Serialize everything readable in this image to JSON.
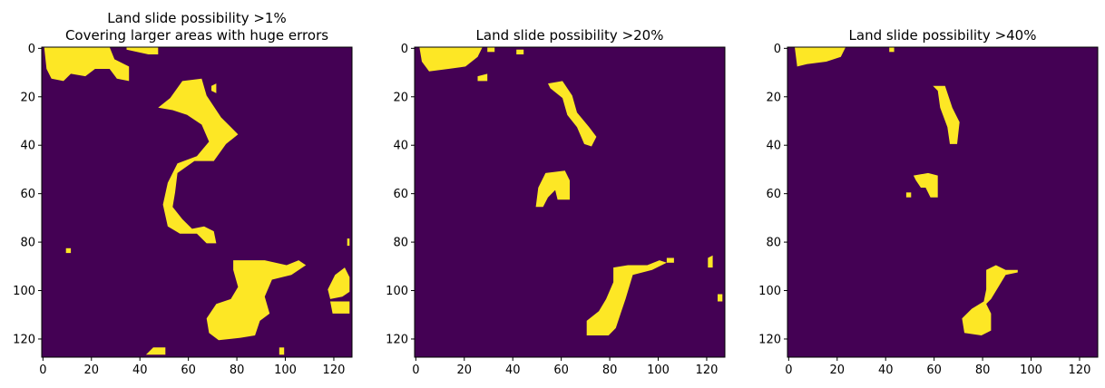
{
  "chart_data": [
    {
      "type": "heatmap",
      "title_lines": [
        "Land slide possibility >1%",
        "Covering larger areas with huge errors"
      ],
      "xlabel": "",
      "ylabel": "",
      "xlim": [
        0,
        127
      ],
      "ylim": [
        127,
        0
      ],
      "xticks": [
        0,
        20,
        40,
        60,
        80,
        100,
        120
      ],
      "yticks": [
        0,
        20,
        40,
        60,
        80,
        100,
        120
      ],
      "colors": {
        "background": "#440154",
        "foreground": "#fde725"
      },
      "regions": [
        {
          "name": "top-left blob",
          "points": [
            [
              1,
              0
            ],
            [
              28,
              0
            ],
            [
              30,
              5
            ],
            [
              36,
              8
            ],
            [
              36,
              14
            ],
            [
              31,
              13
            ],
            [
              28,
              9
            ],
            [
              22,
              9
            ],
            [
              18,
              12
            ],
            [
              12,
              11
            ],
            [
              9,
              14
            ],
            [
              4,
              13
            ],
            [
              2,
              9
            ]
          ]
        },
        {
          "name": "top strip",
          "points": [
            [
              35,
              0
            ],
            [
              48,
              0
            ],
            [
              48,
              3
            ],
            [
              44,
              3
            ],
            [
              35,
              1
            ]
          ]
        },
        {
          "name": "small dot top",
          "points": [
            [
              70,
              16
            ],
            [
              72,
              15
            ],
            [
              72,
              19
            ],
            [
              70,
              18
            ]
          ]
        },
        {
          "name": "upper S",
          "points": [
            [
              48,
              25
            ],
            [
              53,
              21
            ],
            [
              58,
              14
            ],
            [
              66,
              13
            ],
            [
              68,
              20
            ],
            [
              74,
              29
            ],
            [
              81,
              36
            ],
            [
              76,
              40
            ],
            [
              71,
              47
            ],
            [
              63,
              47
            ],
            [
              56,
              52
            ],
            [
              55,
              60
            ],
            [
              54,
              66
            ],
            [
              58,
              71
            ],
            [
              62,
              75
            ],
            [
              67,
              74
            ],
            [
              71,
              76
            ],
            [
              72,
              81
            ],
            [
              68,
              81
            ],
            [
              64,
              77
            ],
            [
              57,
              77
            ],
            [
              52,
              74
            ],
            [
              50,
              65
            ],
            [
              52,
              56
            ],
            [
              56,
              48
            ],
            [
              64,
              45
            ],
            [
              69,
              39
            ],
            [
              66,
              32
            ],
            [
              60,
              28
            ],
            [
              54,
              26
            ]
          ]
        },
        {
          "name": "left dot",
          "points": [
            [
              10,
              83
            ],
            [
              12,
              83
            ],
            [
              12,
              85
            ],
            [
              10,
              85
            ]
          ]
        },
        {
          "name": "right dot",
          "points": [
            [
              126,
              79
            ],
            [
              127,
              79
            ],
            [
              127,
              82
            ],
            [
              126,
              82
            ]
          ]
        },
        {
          "name": "lower blob",
          "points": [
            [
              79,
              88
            ],
            [
              92,
              88
            ],
            [
              101,
              90
            ],
            [
              106,
              88
            ],
            [
              109,
              90
            ],
            [
              103,
              94
            ],
            [
              95,
              96
            ],
            [
              92,
              103
            ],
            [
              94,
              110
            ],
            [
              90,
              113
            ],
            [
              88,
              119
            ],
            [
              82,
              120
            ],
            [
              73,
              121
            ],
            [
              69,
              118
            ],
            [
              68,
              112
            ],
            [
              72,
              106
            ],
            [
              78,
              104
            ],
            [
              81,
              99
            ],
            [
              79,
              92
            ]
          ]
        },
        {
          "name": "right edge blobs",
          "points": [
            [
              121,
              94
            ],
            [
              125,
              91
            ],
            [
              127,
              95
            ],
            [
              127,
              101
            ],
            [
              124,
              103
            ],
            [
              119,
              104
            ],
            [
              118,
              100
            ]
          ]
        },
        {
          "name": "right edge lower",
          "points": [
            [
              119,
              105
            ],
            [
              127,
              105
            ],
            [
              127,
              110
            ],
            [
              120,
              110
            ]
          ]
        },
        {
          "name": "bottom blob",
          "points": [
            [
              43,
              127
            ],
            [
              46,
              124
            ],
            [
              51,
              124
            ],
            [
              51,
              127
            ]
          ]
        },
        {
          "name": "bottom dot",
          "points": [
            [
              98,
              124
            ],
            [
              100,
              124
            ],
            [
              100,
              127
            ],
            [
              98,
              127
            ]
          ]
        }
      ]
    },
    {
      "type": "heatmap",
      "title_lines": [
        "Land slide possibility >20%"
      ],
      "xlabel": "",
      "ylabel": "",
      "xlim": [
        0,
        127
      ],
      "ylim": [
        127,
        0
      ],
      "xticks": [
        0,
        20,
        40,
        60,
        80,
        100,
        120
      ],
      "yticks": [
        0,
        20,
        40,
        60,
        80,
        100,
        120
      ],
      "colors": {
        "background": "#440154",
        "foreground": "#fde725"
      },
      "regions": [
        {
          "name": "top-left blob",
          "points": [
            [
              2,
              0
            ],
            [
              28,
              0
            ],
            [
              26,
              4
            ],
            [
              21,
              8
            ],
            [
              14,
              9
            ],
            [
              6,
              10
            ],
            [
              3,
              6
            ]
          ]
        },
        {
          "name": "top dot",
          "points": [
            [
              30,
              0
            ],
            [
              33,
              0
            ],
            [
              33,
              2
            ],
            [
              30,
              2
            ]
          ]
        },
        {
          "name": "top dot 2",
          "points": [
            [
              42,
              1
            ],
            [
              45,
              1
            ],
            [
              45,
              3
            ],
            [
              42,
              3
            ]
          ]
        },
        {
          "name": "small dot",
          "points": [
            [
              26,
              12
            ],
            [
              30,
              11
            ],
            [
              30,
              14
            ],
            [
              26,
              14
            ]
          ]
        },
        {
          "name": "upper streak",
          "points": [
            [
              55,
              15
            ],
            [
              61,
              14
            ],
            [
              65,
              20
            ],
            [
              67,
              27
            ],
            [
              72,
              33
            ],
            [
              75,
              37
            ],
            [
              73,
              41
            ],
            [
              70,
              40
            ],
            [
              67,
              33
            ],
            [
              63,
              28
            ],
            [
              61,
              21
            ],
            [
              56,
              17
            ]
          ]
        },
        {
          "name": "middle blob",
          "points": [
            [
              51,
              58
            ],
            [
              54,
              52
            ],
            [
              62,
              51
            ],
            [
              64,
              55
            ],
            [
              64,
              63
            ],
            [
              59,
              63
            ],
            [
              58,
              59
            ],
            [
              55,
              62
            ],
            [
              53,
              66
            ],
            [
              50,
              66
            ]
          ]
        },
        {
          "name": "lower blob",
          "points": [
            [
              82,
              91
            ],
            [
              88,
              90
            ],
            [
              96,
              90
            ],
            [
              101,
              88
            ],
            [
              104,
              89
            ],
            [
              98,
              92
            ],
            [
              90,
              94
            ],
            [
              87,
              104
            ],
            [
              85,
              110
            ],
            [
              83,
              116
            ],
            [
              80,
              119
            ],
            [
              71,
              119
            ],
            [
              71,
              113
            ],
            [
              76,
              109
            ],
            [
              79,
              104
            ],
            [
              82,
              97
            ]
          ]
        },
        {
          "name": "right dot",
          "points": [
            [
              104,
              87
            ],
            [
              107,
              87
            ],
            [
              107,
              89
            ],
            [
              104,
              89
            ]
          ]
        },
        {
          "name": "right edge",
          "points": [
            [
              121,
              87
            ],
            [
              123,
              86
            ],
            [
              123,
              91
            ],
            [
              121,
              91
            ]
          ]
        },
        {
          "name": "right edge low",
          "points": [
            [
              125,
              102
            ],
            [
              127,
              102
            ],
            [
              127,
              105
            ],
            [
              125,
              105
            ]
          ]
        }
      ]
    },
    {
      "type": "heatmap",
      "title_lines": [
        "Land slide possibility >40%"
      ],
      "xlabel": "",
      "ylabel": "",
      "xlim": [
        0,
        127
      ],
      "ylim": [
        127,
        0
      ],
      "xticks": [
        0,
        20,
        40,
        60,
        80,
        100,
        120
      ],
      "yticks": [
        0,
        20,
        40,
        60,
        80,
        100,
        120
      ],
      "colors": {
        "background": "#440154",
        "foreground": "#fde725"
      },
      "regions": [
        {
          "name": "top-left blob",
          "points": [
            [
              3,
              0
            ],
            [
              24,
              0
            ],
            [
              22,
              4
            ],
            [
              16,
              6
            ],
            [
              8,
              7
            ],
            [
              4,
              8
            ]
          ]
        },
        {
          "name": "top dot",
          "points": [
            [
              42,
              0
            ],
            [
              44,
              0
            ],
            [
              44,
              2
            ],
            [
              42,
              2
            ]
          ]
        },
        {
          "name": "upper streak",
          "points": [
            [
              60,
              16
            ],
            [
              65,
              16
            ],
            [
              68,
              25
            ],
            [
              71,
              31
            ],
            [
              70,
              40
            ],
            [
              67,
              40
            ],
            [
              66,
              33
            ],
            [
              63,
              25
            ],
            [
              62,
              18
            ]
          ]
        },
        {
          "name": "middle blob",
          "points": [
            [
              52,
              53
            ],
            [
              58,
              52
            ],
            [
              62,
              53
            ],
            [
              62,
              62
            ],
            [
              59,
              62
            ],
            [
              57,
              58
            ],
            [
              55,
              58
            ],
            [
              53,
              55
            ]
          ]
        },
        {
          "name": "small dot",
          "points": [
            [
              49,
              60
            ],
            [
              51,
              60
            ],
            [
              51,
              62
            ],
            [
              49,
              62
            ]
          ]
        },
        {
          "name": "lower blob",
          "points": [
            [
              82,
              92
            ],
            [
              86,
              90
            ],
            [
              90,
              92
            ],
            [
              95,
              92
            ],
            [
              95,
              93
            ],
            [
              90,
              94
            ],
            [
              87,
              99
            ],
            [
              84,
              104
            ],
            [
              82,
              106
            ],
            [
              84,
              110
            ],
            [
              84,
              117
            ],
            [
              80,
              119
            ],
            [
              73,
              118
            ],
            [
              72,
              112
            ],
            [
              76,
              108
            ],
            [
              81,
              105
            ],
            [
              82,
              100
            ]
          ]
        }
      ]
    }
  ]
}
